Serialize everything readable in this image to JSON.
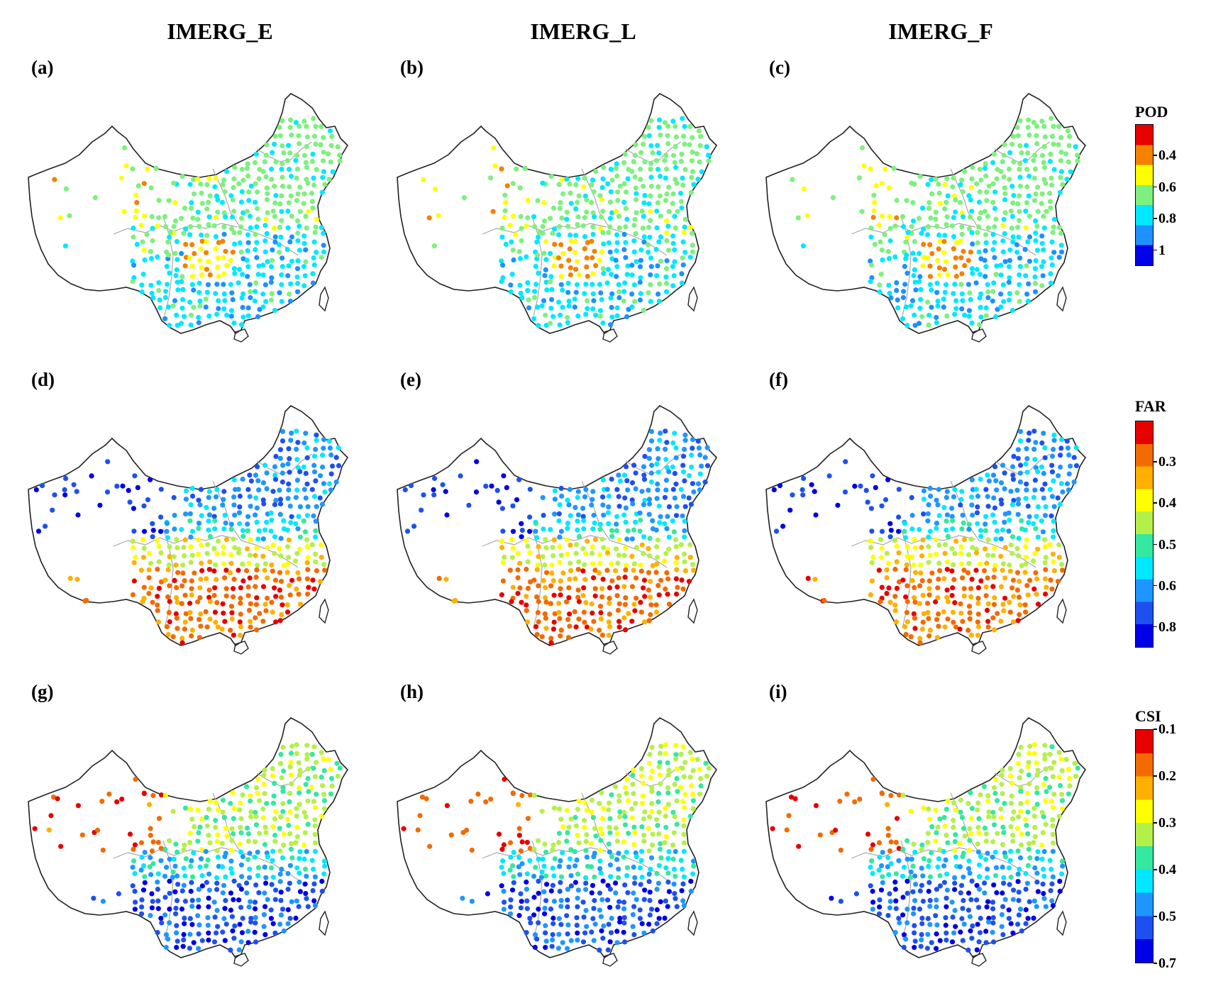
{
  "columns": [
    "IMERG_E",
    "IMERG_L",
    "IMERG_F"
  ],
  "rows": [
    {
      "metric": "POD",
      "panels": [
        "(a)",
        "(b)",
        "(c)"
      ],
      "colorbar": {
        "title": "POD",
        "ticks": [
          "0.4",
          "0.6",
          "0.8",
          "1"
        ],
        "colors": [
          "#e60000",
          "#f28200",
          "#ffff00",
          "#7ef07e",
          "#00e8ff",
          "#1e90ff",
          "#0000e6"
        ]
      }
    },
    {
      "metric": "FAR",
      "panels": [
        "(d)",
        "(e)",
        "(f)"
      ],
      "colorbar": {
        "title": "FAR",
        "ticks": [
          "0.3",
          "0.4",
          "0.5",
          "0.6",
          "0.8"
        ],
        "colors": [
          "#e60000",
          "#f26a00",
          "#ffb000",
          "#ffff00",
          "#b4f04a",
          "#34e8a0",
          "#00e8ff",
          "#1e96ff",
          "#1e50f0",
          "#0000e6"
        ]
      }
    },
    {
      "metric": "CSI",
      "panels": [
        "(g)",
        "(h)",
        "(i)"
      ],
      "colorbar": {
        "title": "CSI",
        "ticks": [
          "0.1",
          "0.2",
          "0.3",
          "0.4",
          "0.5",
          "0.7"
        ],
        "colors": [
          "#e60000",
          "#f26a00",
          "#ffb000",
          "#ffff00",
          "#b4f04a",
          "#34e8a0",
          "#00e8ff",
          "#1e96ff",
          "#1e50f0",
          "#0000e6"
        ]
      }
    }
  ]
}
